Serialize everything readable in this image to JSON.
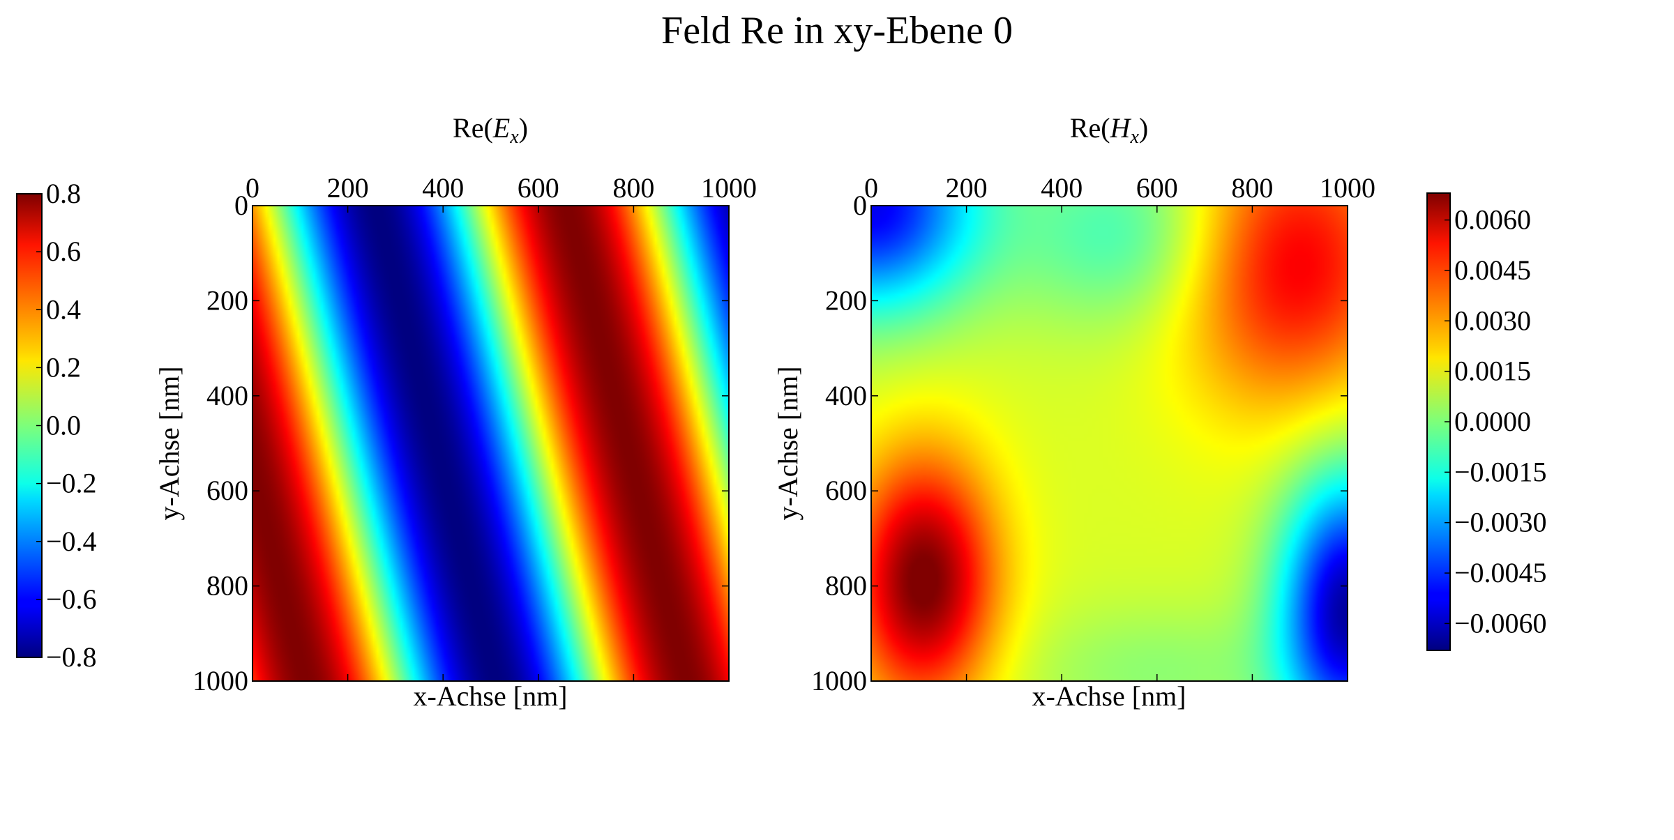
{
  "title": "Feld Re in xy-Ebene 0",
  "chart_data": [
    {
      "type": "heatmap",
      "title_base": "Re(",
      "title_var": "E",
      "title_sub": "x",
      "title_end": ")",
      "xlabel": "x-Achse [nm]",
      "ylabel": "y-Achse [nm]",
      "xlim": [
        0,
        1000
      ],
      "ylim": [
        0,
        1000
      ],
      "y_inverted": true,
      "x_ticks": [
        "0",
        "200",
        "400",
        "600",
        "800",
        "1000"
      ],
      "y_ticks": [
        "0",
        "200",
        "400",
        "600",
        "800",
        "1000"
      ],
      "colormap": "jet",
      "value_range": [
        -0.8,
        0.8
      ],
      "colorbar_position": "left",
      "colorbar_ticks": [
        "0.8",
        "0.6",
        "0.4",
        "0.2",
        "0.0",
        "−0.2",
        "−0.4",
        "−0.6",
        "−0.8"
      ],
      "field_model": {
        "amplitude": 0.8,
        "wavenumber_x_per_nm": 0.0125,
        "tilt_x_per_y_nm": 0.25,
        "phase_rad": 0.0
      }
    },
    {
      "type": "heatmap",
      "title_base": "Re(",
      "title_var": "H",
      "title_sub": "x",
      "title_end": ")",
      "xlabel": "x-Achse [nm]",
      "ylabel": "y-Achse [nm]",
      "xlim": [
        0,
        1000
      ],
      "ylim": [
        0,
        1000
      ],
      "y_inverted": true,
      "x_ticks": [
        "0",
        "200",
        "400",
        "600",
        "800",
        "1000"
      ],
      "y_ticks": [
        "0",
        "200",
        "400",
        "600",
        "800",
        "1000"
      ],
      "colormap": "jet",
      "value_range": [
        -0.0068,
        0.0068
      ],
      "colorbar_position": "right",
      "colorbar_ticks": [
        "0.0060",
        "0.0045",
        "0.0030",
        "0.0015",
        "0.0000",
        "−0.0015",
        "−0.0030",
        "−0.0045",
        "−0.0060"
      ],
      "field_model": {
        "baseline": 0.0012,
        "blobs": [
          {
            "x": 110,
            "y": 790,
            "sx": 150,
            "sy": 260,
            "value": 0.0058
          },
          {
            "x": 1000,
            "y": 850,
            "sx": 140,
            "sy": 280,
            "value": -0.0075
          },
          {
            "x": 0,
            "y": 0,
            "sx": 220,
            "sy": 220,
            "value": -0.0065
          },
          {
            "x": 880,
            "y": 120,
            "sx": 240,
            "sy": 300,
            "value": 0.0042
          },
          {
            "x": 550,
            "y": 60,
            "sx": 240,
            "sy": 200,
            "value": -0.0022
          },
          {
            "x": 600,
            "y": 980,
            "sx": 300,
            "sy": 140,
            "value": -0.001
          }
        ]
      }
    }
  ]
}
